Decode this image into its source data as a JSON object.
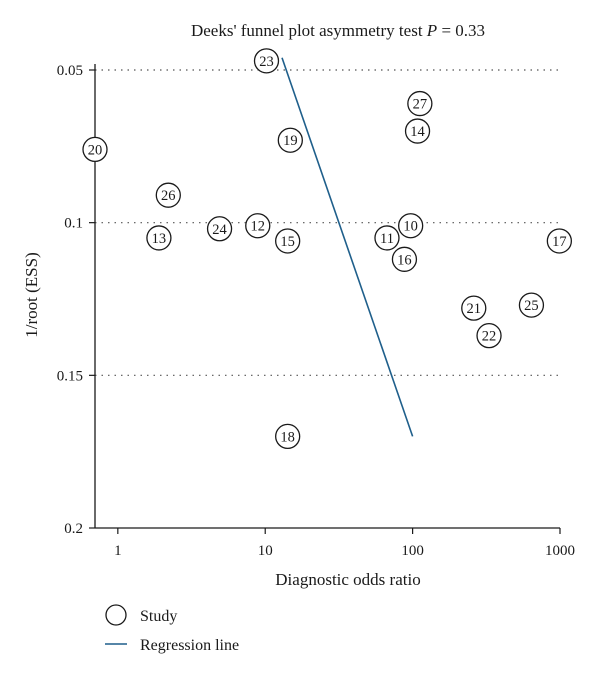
{
  "chart_data": {
    "type": "scatter",
    "title_prefix": "Deeks' funnel plot asymmetry test ",
    "title_p": "P",
    "title_suffix": " = 0.33",
    "xlabel": "Diagnostic odds ratio",
    "ylabel": "1/root (ESS)",
    "x_scale": "log",
    "xlim": [
      0.7,
      1000
    ],
    "ylim": [
      0.2,
      0.05
    ],
    "y_inverted": true,
    "x_ticks": [
      {
        "value": 1,
        "label": "1"
      },
      {
        "value": 10,
        "label": "10"
      },
      {
        "value": 100,
        "label": "100"
      },
      {
        "value": 1000,
        "label": "1000"
      }
    ],
    "y_ticks": [
      {
        "value": 0.05,
        "label": "0.05"
      },
      {
        "value": 0.1,
        "label": "0.1"
      },
      {
        "value": 0.15,
        "label": "0.15"
      },
      {
        "value": 0.2,
        "label": "0.2"
      }
    ],
    "gridlines_y": [
      0.05,
      0.1,
      0.15
    ],
    "grid_style": "dotted",
    "points": [
      {
        "label": "20",
        "x": 0.7,
        "y": 0.076
      },
      {
        "label": "23",
        "x": 10.2,
        "y": 0.047
      },
      {
        "label": "27",
        "x": 112,
        "y": 0.061
      },
      {
        "label": "14",
        "x": 108,
        "y": 0.07
      },
      {
        "label": "19",
        "x": 14.8,
        "y": 0.073
      },
      {
        "label": "26",
        "x": 2.2,
        "y": 0.091
      },
      {
        "label": "12",
        "x": 8.9,
        "y": 0.101
      },
      {
        "label": "24",
        "x": 4.9,
        "y": 0.102
      },
      {
        "label": "13",
        "x": 1.9,
        "y": 0.105
      },
      {
        "label": "15",
        "x": 14.2,
        "y": 0.106
      },
      {
        "label": "10",
        "x": 97,
        "y": 0.101
      },
      {
        "label": "11",
        "x": 67,
        "y": 0.105
      },
      {
        "label": "16",
        "x": 88,
        "y": 0.112
      },
      {
        "label": "17",
        "x": 990,
        "y": 0.106
      },
      {
        "label": "21",
        "x": 260,
        "y": 0.128
      },
      {
        "label": "25",
        "x": 640,
        "y": 0.127
      },
      {
        "label": "22",
        "x": 330,
        "y": 0.137
      },
      {
        "label": "18",
        "x": 14.2,
        "y": 0.17
      }
    ],
    "regression_line": {
      "x": [
        13.0,
        100.0
      ],
      "y": [
        0.046,
        0.17
      ]
    },
    "colors": {
      "line": "#1f5f8b",
      "axis": "#1a1a1a",
      "grid": "#555555"
    }
  },
  "legend": {
    "placement": "bottom-left",
    "items": [
      {
        "symbol": "circle",
        "label": "Study"
      },
      {
        "symbol": "line",
        "label": "Regression line"
      }
    ]
  }
}
